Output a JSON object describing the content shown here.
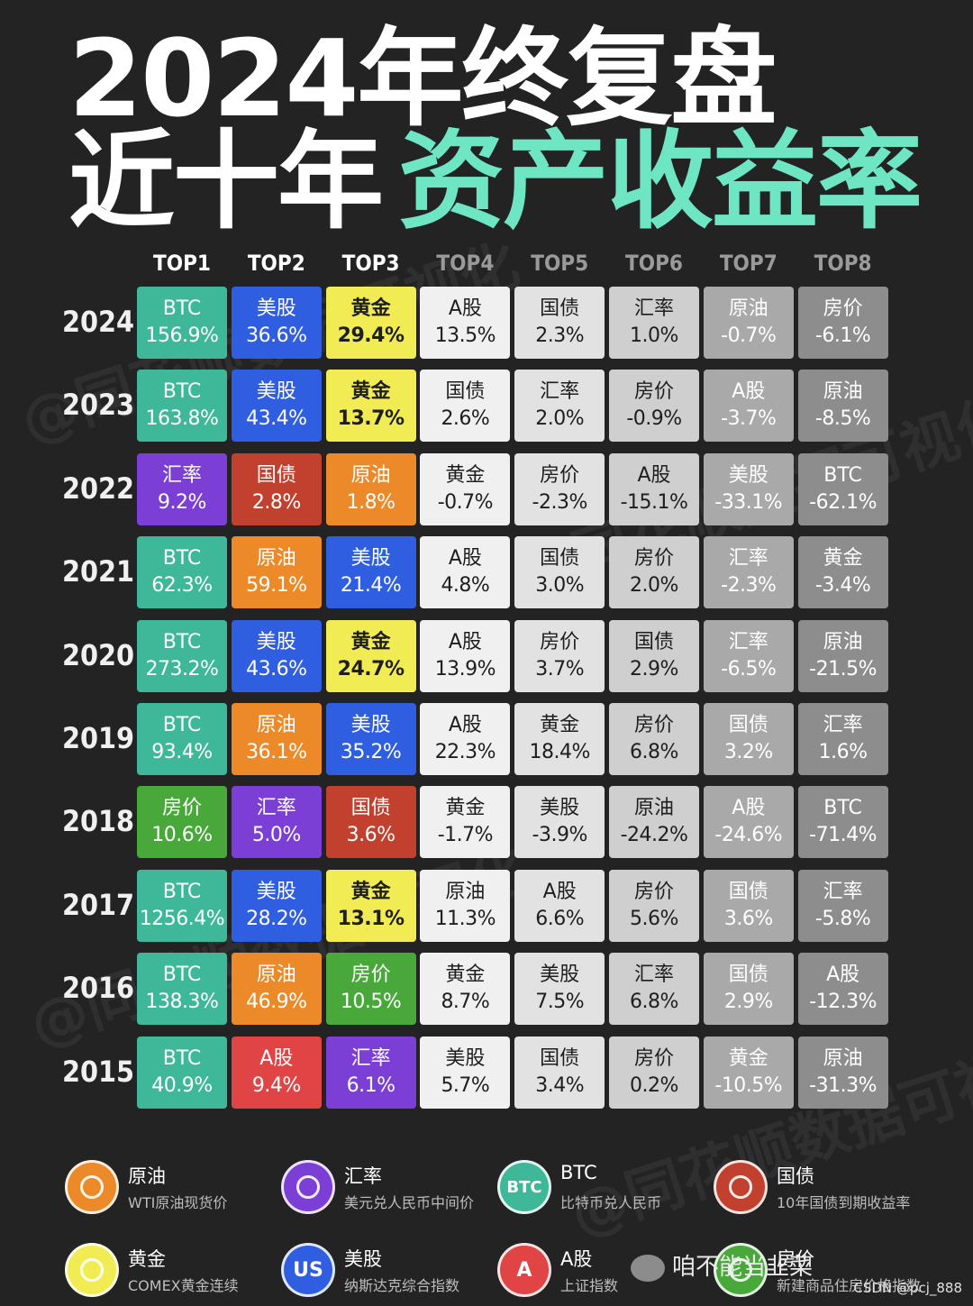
{
  "title": {
    "line1": "2024年终复盘",
    "line2_plain": "近十年",
    "line2_accent": "资产收益率"
  },
  "columns": [
    "TOP1",
    "TOP2",
    "TOP3",
    "TOP4",
    "TOP5",
    "TOP6",
    "TOP7",
    "TOP8"
  ],
  "colors": {
    "BTC": "#3fb89a",
    "美股": "#2f5fe0",
    "黄金": "#f2ec54",
    "汇率": "#7b3fd6",
    "国债": "#c2412e",
    "原油": "#ec8a2a",
    "房价": "#48a83a",
    "A股": "#e04444",
    "col4": "#f0f0f0",
    "col5": "#e2e2e2",
    "col6": "#cfcfcf",
    "col7": "#a9a9a9",
    "col8": "#8d8d8d"
  },
  "chart_data": {
    "type": "table",
    "title": "近十年资产收益率",
    "columns": [
      "TOP1",
      "TOP2",
      "TOP3",
      "TOP4",
      "TOP5",
      "TOP6",
      "TOP7",
      "TOP8"
    ],
    "rows": [
      {
        "year": "2024",
        "cells": [
          {
            "asset": "BTC",
            "value": "156.9%"
          },
          {
            "asset": "美股",
            "value": "36.6%"
          },
          {
            "asset": "黄金",
            "value": "29.4%"
          },
          {
            "asset": "A股",
            "value": "13.5%"
          },
          {
            "asset": "国债",
            "value": "2.3%"
          },
          {
            "asset": "汇率",
            "value": "1.0%"
          },
          {
            "asset": "原油",
            "value": "-0.7%"
          },
          {
            "asset": "房价",
            "value": "-6.1%"
          }
        ]
      },
      {
        "year": "2023",
        "cells": [
          {
            "asset": "BTC",
            "value": "163.8%"
          },
          {
            "asset": "美股",
            "value": "43.4%"
          },
          {
            "asset": "黄金",
            "value": "13.7%"
          },
          {
            "asset": "国债",
            "value": "2.6%"
          },
          {
            "asset": "汇率",
            "value": "2.0%"
          },
          {
            "asset": "房价",
            "value": "-0.9%"
          },
          {
            "asset": "A股",
            "value": "-3.7%"
          },
          {
            "asset": "原油",
            "value": "-8.5%"
          }
        ]
      },
      {
        "year": "2022",
        "cells": [
          {
            "asset": "汇率",
            "value": "9.2%"
          },
          {
            "asset": "国债",
            "value": "2.8%"
          },
          {
            "asset": "原油",
            "value": "1.8%"
          },
          {
            "asset": "黄金",
            "value": "-0.7%"
          },
          {
            "asset": "房价",
            "value": "-2.3%"
          },
          {
            "asset": "A股",
            "value": "-15.1%"
          },
          {
            "asset": "美股",
            "value": "-33.1%"
          },
          {
            "asset": "BTC",
            "value": "-62.1%"
          }
        ]
      },
      {
        "year": "2021",
        "cells": [
          {
            "asset": "BTC",
            "value": "62.3%"
          },
          {
            "asset": "原油",
            "value": "59.1%"
          },
          {
            "asset": "美股",
            "value": "21.4%"
          },
          {
            "asset": "A股",
            "value": "4.8%"
          },
          {
            "asset": "国债",
            "value": "3.0%"
          },
          {
            "asset": "房价",
            "value": "2.0%"
          },
          {
            "asset": "汇率",
            "value": "-2.3%"
          },
          {
            "asset": "黄金",
            "value": "-3.4%"
          }
        ]
      },
      {
        "year": "2020",
        "cells": [
          {
            "asset": "BTC",
            "value": "273.2%"
          },
          {
            "asset": "美股",
            "value": "43.6%"
          },
          {
            "asset": "黄金",
            "value": "24.7%"
          },
          {
            "asset": "A股",
            "value": "13.9%"
          },
          {
            "asset": "房价",
            "value": "3.7%"
          },
          {
            "asset": "国债",
            "value": "2.9%"
          },
          {
            "asset": "汇率",
            "value": "-6.5%"
          },
          {
            "asset": "原油",
            "value": "-21.5%"
          }
        ]
      },
      {
        "year": "2019",
        "cells": [
          {
            "asset": "BTC",
            "value": "93.4%"
          },
          {
            "asset": "原油",
            "value": "36.1%"
          },
          {
            "asset": "美股",
            "value": "35.2%"
          },
          {
            "asset": "A股",
            "value": "22.3%"
          },
          {
            "asset": "黄金",
            "value": "18.4%"
          },
          {
            "asset": "房价",
            "value": "6.8%"
          },
          {
            "asset": "国债",
            "value": "3.2%"
          },
          {
            "asset": "汇率",
            "value": "1.6%"
          }
        ]
      },
      {
        "year": "2018",
        "cells": [
          {
            "asset": "房价",
            "value": "10.6%"
          },
          {
            "asset": "汇率",
            "value": "5.0%"
          },
          {
            "asset": "国债",
            "value": "3.6%"
          },
          {
            "asset": "黄金",
            "value": "-1.7%"
          },
          {
            "asset": "美股",
            "value": "-3.9%"
          },
          {
            "asset": "原油",
            "value": "-24.2%"
          },
          {
            "asset": "A股",
            "value": "-24.6%"
          },
          {
            "asset": "BTC",
            "value": "-71.4%"
          }
        ]
      },
      {
        "year": "2017",
        "cells": [
          {
            "asset": "BTC",
            "value": "1256.4%"
          },
          {
            "asset": "美股",
            "value": "28.2%"
          },
          {
            "asset": "黄金",
            "value": "13.1%"
          },
          {
            "asset": "原油",
            "value": "11.3%"
          },
          {
            "asset": "A股",
            "value": "6.6%"
          },
          {
            "asset": "房价",
            "value": "5.6%"
          },
          {
            "asset": "国债",
            "value": "3.6%"
          },
          {
            "asset": "汇率",
            "value": "-5.8%"
          }
        ]
      },
      {
        "year": "2016",
        "cells": [
          {
            "asset": "BTC",
            "value": "138.3%"
          },
          {
            "asset": "原油",
            "value": "46.9%"
          },
          {
            "asset": "房价",
            "value": "10.5%"
          },
          {
            "asset": "黄金",
            "value": "8.7%"
          },
          {
            "asset": "美股",
            "value": "7.5%"
          },
          {
            "asset": "汇率",
            "value": "6.8%"
          },
          {
            "asset": "国债",
            "value": "2.9%"
          },
          {
            "asset": "A股",
            "value": "-12.3%"
          }
        ]
      },
      {
        "year": "2015",
        "cells": [
          {
            "asset": "BTC",
            "value": "40.9%"
          },
          {
            "asset": "A股",
            "value": "9.4%"
          },
          {
            "asset": "汇率",
            "value": "6.1%"
          },
          {
            "asset": "美股",
            "value": "5.7%"
          },
          {
            "asset": "国债",
            "value": "3.4%"
          },
          {
            "asset": "房价",
            "value": "0.2%"
          },
          {
            "asset": "黄金",
            "value": "-10.5%"
          },
          {
            "asset": "原油",
            "value": "-31.3%"
          }
        ]
      }
    ]
  },
  "legend": [
    {
      "name": "原油",
      "desc": "WTI原油现货价",
      "icon": "oil-drop-icon",
      "color": "#ec8a2a"
    },
    {
      "name": "汇率",
      "desc": "美元兑人民币中间价",
      "icon": "dollar-exchange-icon",
      "color": "#7b3fd6"
    },
    {
      "name": "BTC",
      "desc": "比特币兑人民币",
      "icon": "btc-icon",
      "color": "#3fb89a",
      "glyph": "BTC"
    },
    {
      "name": "国债",
      "desc": "10年国债到期收益率",
      "icon": "treasury-bond-icon",
      "color": "#c2412e"
    },
    {
      "name": "黄金",
      "desc": "COMEX黄金连续",
      "icon": "gold-ingot-icon",
      "color": "#f2ec54"
    },
    {
      "name": "美股",
      "desc": "纳斯达克综合指数",
      "icon": "us-stock-icon",
      "color": "#2f5fe0",
      "glyph": "US"
    },
    {
      "name": "A股",
      "desc": "上证指数",
      "icon": "a-share-icon",
      "color": "#e04444",
      "glyph": "A"
    },
    {
      "name": "房价",
      "desc": "新建商品住房价格指数",
      "icon": "house-icon",
      "color": "#48a83a"
    }
  ],
  "watermark": "@同花顺数据可视化",
  "footer": {
    "wechat": "咱不能当韭菜",
    "csdn": "CSDN @pcj_888"
  }
}
